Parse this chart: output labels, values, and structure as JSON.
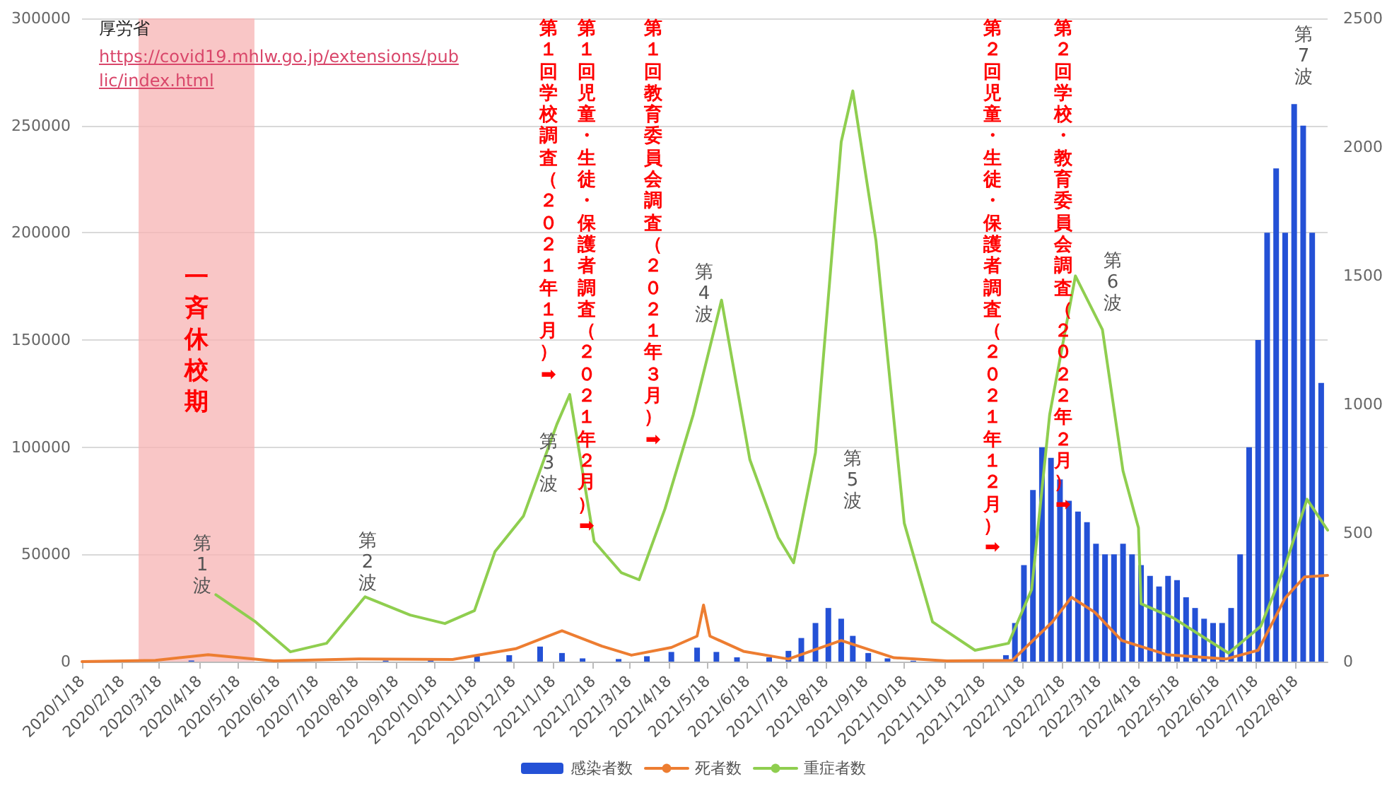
{
  "chart_data": {
    "type": "bar",
    "xlim": [
      "2020-01-18",
      "2022-09-12"
    ],
    "xticks": [
      {
        "value": "2020-01-18",
        "label": "2020/1/18"
      },
      {
        "value": "2020-02-18",
        "label": "2020/2/18"
      },
      {
        "value": "2020-03-18",
        "label": "2020/3/18"
      },
      {
        "value": "2020-04-18",
        "label": "2020/4/18"
      },
      {
        "value": "2020-05-18",
        "label": "2020/5/18"
      },
      {
        "value": "2020-06-18",
        "label": "2020/6/18"
      },
      {
        "value": "2020-07-18",
        "label": "2020/7/18"
      },
      {
        "value": "2020-08-18",
        "label": "2020/8/18"
      },
      {
        "value": "2020-09-18",
        "label": "2020/9/18"
      },
      {
        "value": "2020-10-18",
        "label": "2020/10/18"
      },
      {
        "value": "2020-11-18",
        "label": "2020/11/18"
      },
      {
        "value": "2020-12-18",
        "label": "2020/12/18"
      },
      {
        "value": "2021-01-18",
        "label": "2021/1/18"
      },
      {
        "value": "2021-02-18",
        "label": "2021/2/18"
      },
      {
        "value": "2021-03-18",
        "label": "2021/3/18"
      },
      {
        "value": "2021-04-18",
        "label": "2021/4/18"
      },
      {
        "value": "2021-05-18",
        "label": "2021/5/18"
      },
      {
        "value": "2021-06-18",
        "label": "2021/6/18"
      },
      {
        "value": "2021-07-18",
        "label": "2021/7/18"
      },
      {
        "value": "2021-08-18",
        "label": "2021/8/18"
      },
      {
        "value": "2021-09-18",
        "label": "2021/9/18"
      },
      {
        "value": "2021-10-18",
        "label": "2021/10/18"
      },
      {
        "value": "2021-11-18",
        "label": "2021/11/18"
      },
      {
        "value": "2021-12-18",
        "label": "2021/12/18"
      },
      {
        "value": "2022-01-18",
        "label": "2022/1/18"
      },
      {
        "value": "2022-02-18",
        "label": "2022/2/18"
      },
      {
        "value": "2022-03-18",
        "label": "2022/3/18"
      },
      {
        "value": "2022-04-18",
        "label": "2022/4/18"
      },
      {
        "value": "2022-05-18",
        "label": "2022/5/18"
      },
      {
        "value": "2022-06-18",
        "label": "2022/6/18"
      },
      {
        "value": "2022-07-18",
        "label": "2022/7/18"
      },
      {
        "value": "2022-08-18",
        "label": "2022/8/18"
      }
    ],
    "ylim": [
      0,
      300000
    ],
    "yticks": [
      0,
      50000,
      100000,
      150000,
      200000,
      250000,
      300000
    ],
    "y2lim": [
      0,
      2500
    ],
    "y2ticks": [
      0,
      500,
      1000,
      1500,
      2000,
      2500
    ],
    "grid": "y",
    "legend": "bottom",
    "marker": "none",
    "line_style": "solid",
    "series": [
      {
        "name": "感染者数",
        "color": "#2451d6",
        "x": [
          "2020-03-01",
          "2020-04-12",
          "2020-05-10",
          "2020-07-01",
          "2020-07-29",
          "2020-08-10",
          "2020-09-10",
          "2020-10-15",
          "2020-11-20",
          "2020-12-15",
          "2021-01-08",
          "2021-01-25",
          "2021-02-10",
          "2021-03-10",
          "2021-04-01",
          "2021-04-20",
          "2021-05-10",
          "2021-05-25",
          "2021-06-10",
          "2021-07-05",
          "2021-07-20",
          "2021-07-30",
          "2021-08-10",
          "2021-08-20",
          "2021-08-30",
          "2021-09-08",
          "2021-09-20",
          "2021-10-05",
          "2021-10-25",
          "2021-11-20",
          "2021-12-20",
          "2022-01-05",
          "2022-01-12",
          "2022-01-19",
          "2022-01-26",
          "2022-02-02",
          "2022-02-09",
          "2022-02-16",
          "2022-02-23",
          "2022-03-02",
          "2022-03-09",
          "2022-03-16",
          "2022-03-23",
          "2022-03-30",
          "2022-04-06",
          "2022-04-13",
          "2022-04-20",
          "2022-04-27",
          "2022-05-04",
          "2022-05-11",
          "2022-05-18",
          "2022-05-25",
          "2022-06-01",
          "2022-06-08",
          "2022-06-15",
          "2022-06-22",
          "2022-06-29",
          "2022-07-06",
          "2022-07-13",
          "2022-07-20",
          "2022-07-27",
          "2022-08-03",
          "2022-08-10",
          "2022-08-17",
          "2022-08-24",
          "2022-08-31",
          "2022-09-07"
        ],
        "values": [
          100,
          500,
          null,
          200,
          null,
          null,
          500,
          600,
          2500,
          3000,
          7000,
          4000,
          1500,
          1200,
          2500,
          4500,
          6500,
          4500,
          2000,
          2000,
          5000,
          11000,
          18000,
          25000,
          20000,
          12000,
          4000,
          1500,
          400,
          200,
          300,
          3000,
          18000,
          45000,
          80000,
          100000,
          95000,
          85000,
          75000,
          70000,
          65000,
          55000,
          50000,
          50000,
          55000,
          50000,
          45000,
          40000,
          35000,
          40000,
          38000,
          30000,
          25000,
          20000,
          18000,
          18000,
          25000,
          50000,
          100000,
          150000,
          200000,
          230000,
          200000,
          260000,
          250000,
          200000,
          130000
        ]
      },
      {
        "name": "死者数",
        "type": "line",
        "axis": "y2",
        "color": "#ed7d31",
        "x": [
          "2020-01-18",
          "2020-03-15",
          "2020-04-25",
          "2020-06-15",
          "2020-08-20",
          "2020-11-01",
          "2020-12-20",
          "2021-01-25",
          "2021-02-25",
          "2021-03-20",
          "2021-04-20",
          "2021-05-10",
          "2021-05-15",
          "2021-05-20",
          "2021-06-15",
          "2021-07-20",
          "2021-08-30",
          "2021-10-10",
          "2021-11-20",
          "2022-01-10",
          "2022-02-10",
          "2022-02-25",
          "2022-03-15",
          "2022-04-05",
          "2022-05-10",
          "2022-06-25",
          "2022-07-20",
          "2022-08-10",
          "2022-08-25",
          "2022-09-12"
        ],
        "values": [
          0,
          5,
          27,
          3,
          10,
          8,
          50,
          120,
          60,
          25,
          55,
          99,
          220,
          99,
          40,
          10,
          82,
          15,
          3,
          5,
          154,
          250,
          192,
          82,
          27,
          10,
          44,
          247,
          329,
          335
        ]
      },
      {
        "name": "重症者数",
        "type": "line",
        "axis": "y2",
        "color": "#8fce4f",
        "x": [
          "2020-05-01",
          "2020-06-01",
          "2020-06-28",
          "2020-07-26",
          "2020-08-25",
          "2020-09-29",
          "2020-10-26",
          "2020-11-18",
          "2020-12-04",
          "2020-12-26",
          "2021-01-21",
          "2021-01-31",
          "2021-02-19",
          "2021-03-12",
          "2021-03-26",
          "2021-04-15",
          "2021-05-07",
          "2021-05-29",
          "2021-06-20",
          "2021-07-12",
          "2021-07-24",
          "2021-08-10",
          "2021-08-30",
          "2021-09-08",
          "2021-09-26",
          "2021-10-18",
          "2021-11-09",
          "2021-12-12",
          "2022-01-07",
          "2022-01-25",
          "2022-02-08",
          "2022-02-28",
          "2022-03-21",
          "2022-04-06",
          "2022-04-18",
          "2022-04-20",
          "2022-05-15",
          "2022-06-27",
          "2022-07-22",
          "2022-08-10",
          "2022-08-27",
          "2022-09-12"
        ],
        "values": [
          260,
          154,
          38,
          71,
          252,
          181,
          148,
          198,
          428,
          565,
          922,
          1038,
          467,
          346,
          318,
          593,
          960,
          1405,
          785,
          483,
          384,
          812,
          2020,
          2218,
          1636,
          538,
          154,
          44,
          71,
          280,
          960,
          1499,
          1290,
          741,
          520,
          225,
          170,
          33,
          137,
          373,
          631,
          511
        ]
      }
    ],
    "bands": [
      {
        "axis": "x",
        "from": "2020-03-02",
        "to": "2020-05-31",
        "label": "一斉休校期",
        "color": "#f7b3b3"
      }
    ],
    "annotations": [
      "厚労省",
      "https://covid19.mhlw.go.jp/extensions/public/index.html",
      "第1波",
      "第2波",
      "第3波",
      "第4波",
      "第5波",
      "第6波",
      "第7波",
      "第１回学校調査（２０２１年１月）➡",
      "第１回児童・生徒・保護者調査（２０２１年２月）➡",
      "第１回教育委員会調査（２０２１年３月）➡",
      "第２回児童・生徒・保護者調査（２０２１年１２月）➡",
      "第２回学校・教育委員会調査（２０２２年２月）➡"
    ]
  }
}
